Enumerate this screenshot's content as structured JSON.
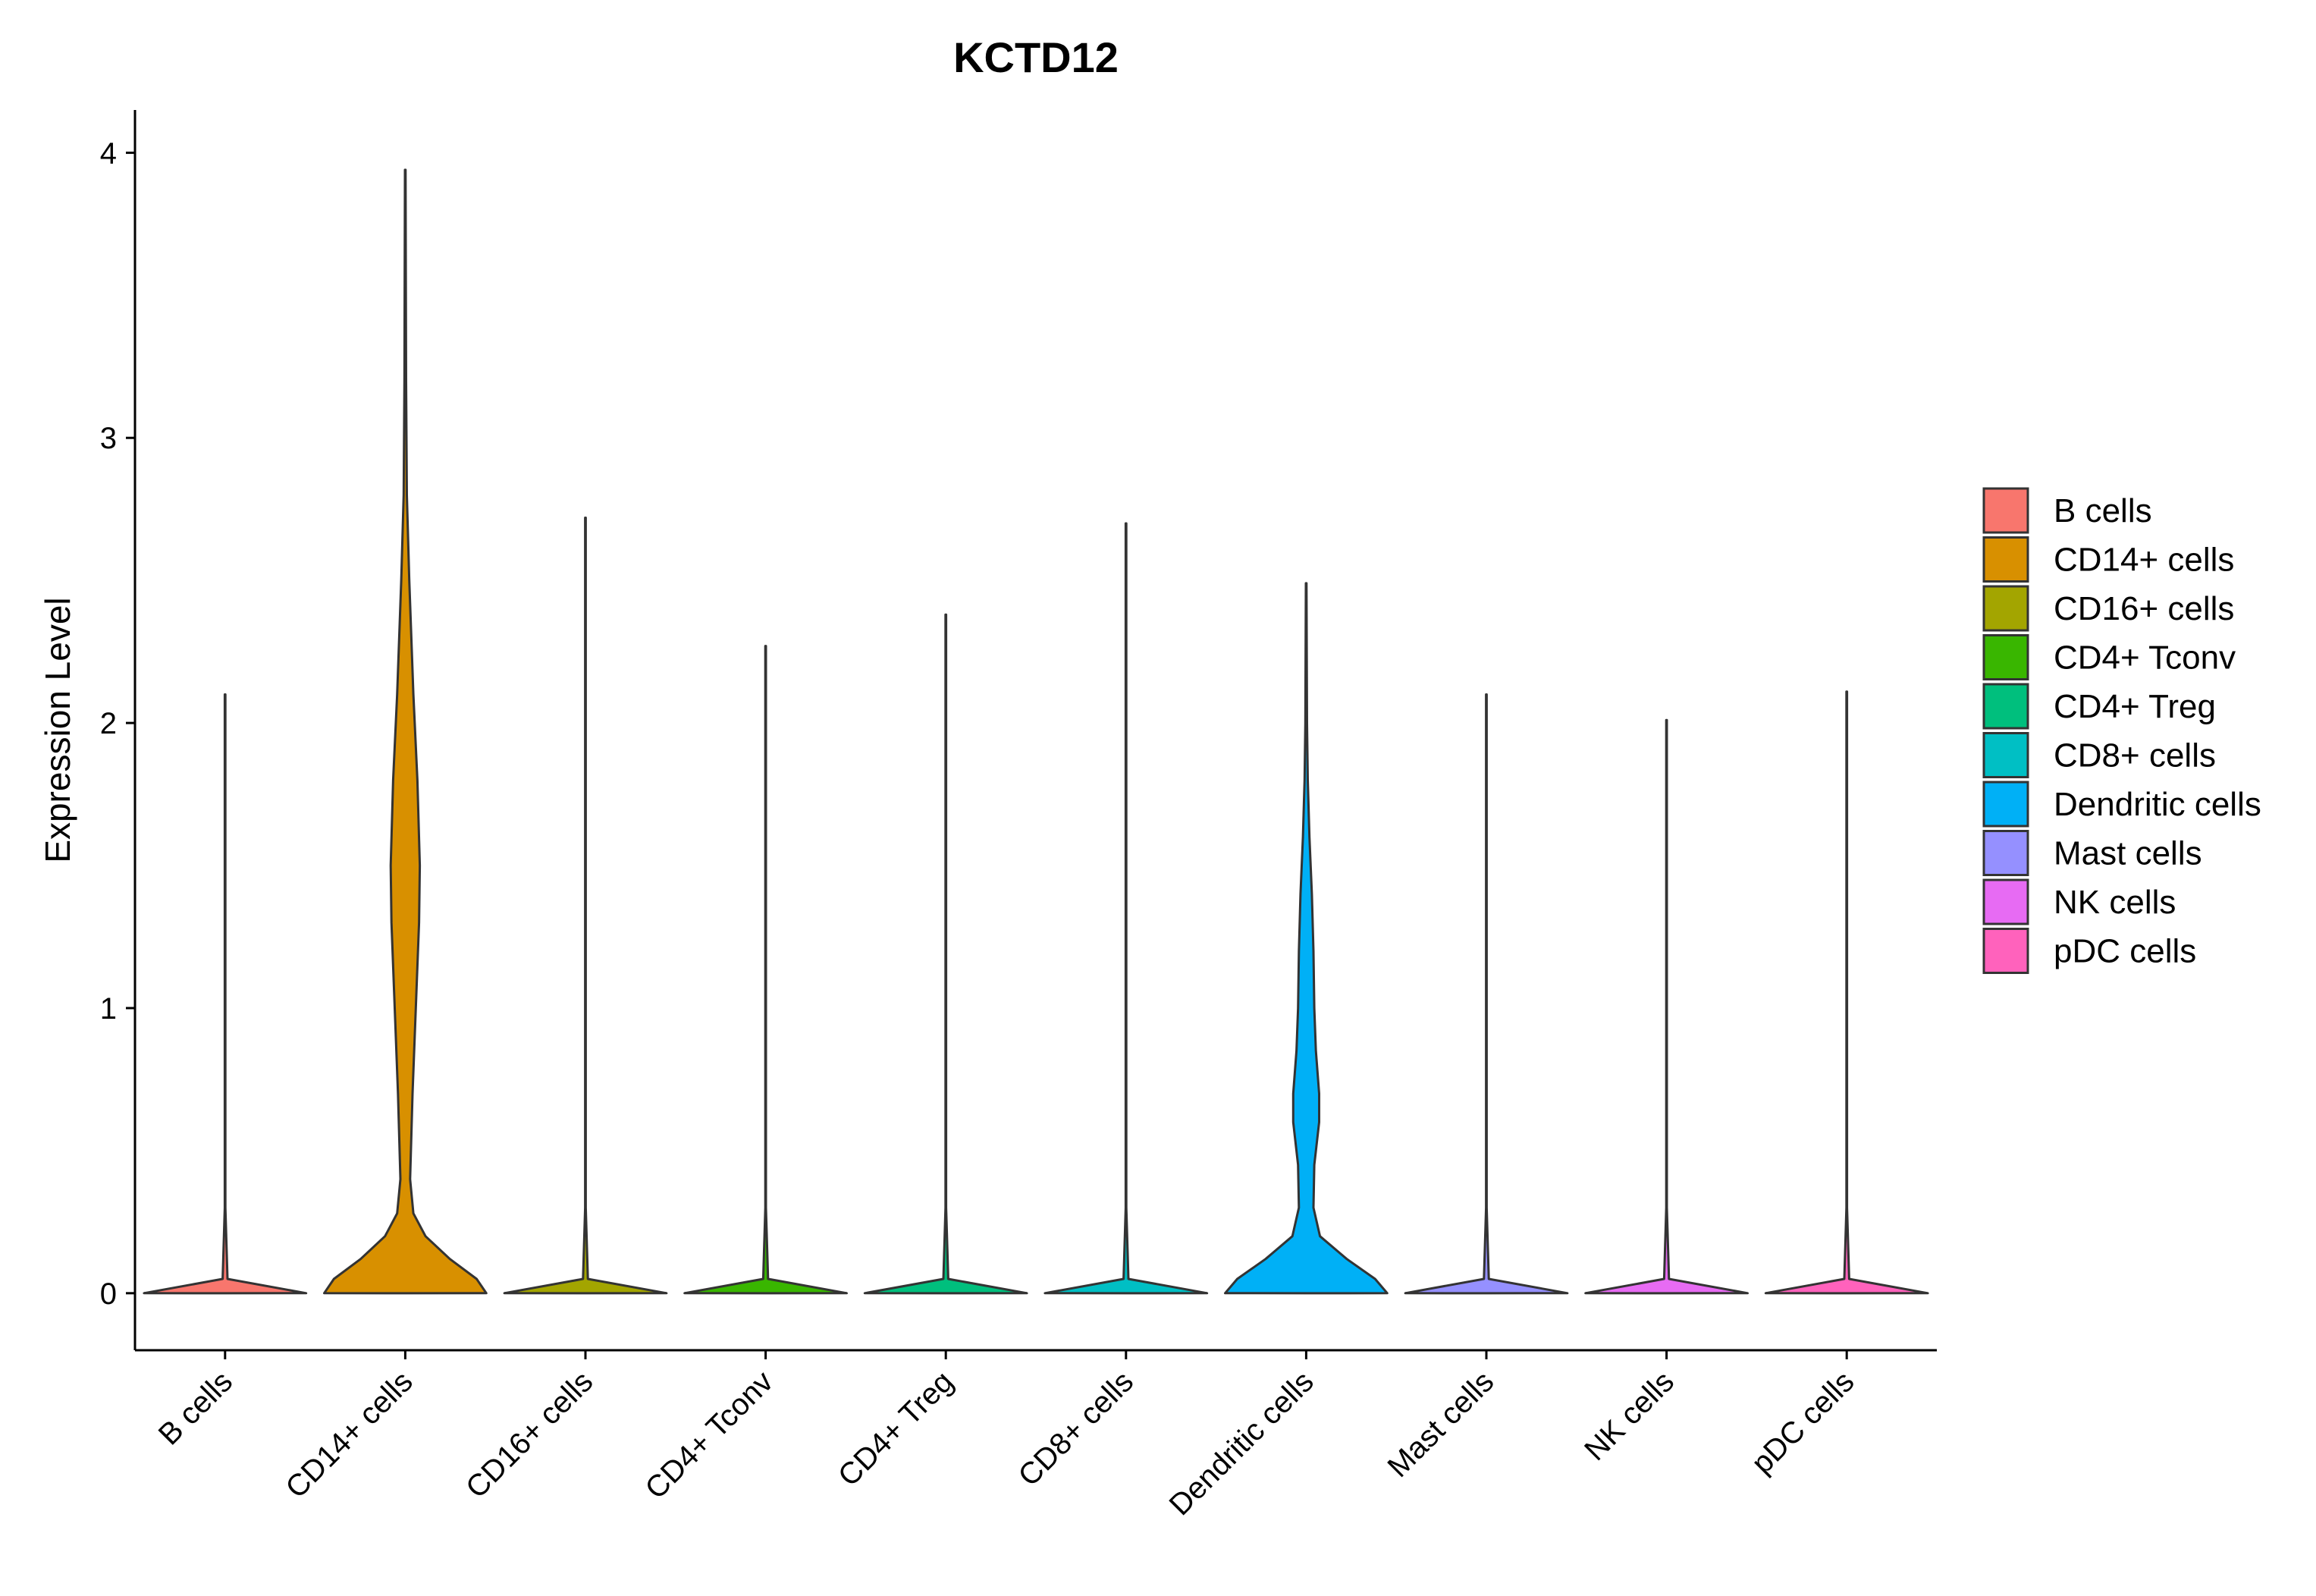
{
  "chart_data": {
    "type": "violin",
    "title": "KCTD12",
    "xlabel": "",
    "ylabel": "Expression Level",
    "ylim": [
      -0.2,
      4.15
    ],
    "yticks": [
      0,
      1,
      2,
      3,
      4
    ],
    "ytick_labels": [
      "0",
      "1",
      "2",
      "3",
      "4"
    ],
    "grid": false,
    "legend_position": "right",
    "categories": [
      "B cells",
      "CD14+ cells",
      "CD16+ cells",
      "CD4+ Tconv",
      "CD4+ Treg",
      "CD8+ cells",
      "Dendritic cells",
      "Mast cells",
      "NK cells",
      "pDC cells"
    ],
    "colors": [
      "#F8766D",
      "#D89000",
      "#A3A500",
      "#39B600",
      "#00BF7D",
      "#00BFC4",
      "#00B0F6",
      "#9590FF",
      "#E76BF3",
      "#FF62BC"
    ],
    "max_values": [
      2.1,
      3.94,
      2.72,
      2.27,
      2.38,
      2.7,
      2.49,
      2.1,
      2.01,
      2.11
    ],
    "density_profiles": [
      [
        [
          0,
          1.0
        ],
        [
          0.05,
          0.03
        ],
        [
          0.3,
          0.004
        ],
        [
          2.1,
          0.004
        ]
      ],
      [
        [
          0,
          1.0
        ],
        [
          0.05,
          0.88
        ],
        [
          0.12,
          0.55
        ],
        [
          0.2,
          0.25
        ],
        [
          0.28,
          0.1
        ],
        [
          0.4,
          0.06
        ],
        [
          0.7,
          0.09
        ],
        [
          1.0,
          0.13
        ],
        [
          1.3,
          0.17
        ],
        [
          1.5,
          0.18
        ],
        [
          1.8,
          0.15
        ],
        [
          2.1,
          0.1
        ],
        [
          2.5,
          0.05
        ],
        [
          2.8,
          0.02
        ],
        [
          3.2,
          0.01
        ],
        [
          3.94,
          0.004
        ]
      ],
      [
        [
          0,
          1.0
        ],
        [
          0.05,
          0.03
        ],
        [
          0.3,
          0.004
        ],
        [
          2.72,
          0.004
        ]
      ],
      [
        [
          0,
          1.0
        ],
        [
          0.05,
          0.03
        ],
        [
          0.3,
          0.004
        ],
        [
          2.27,
          0.004
        ]
      ],
      [
        [
          0,
          1.0
        ],
        [
          0.05,
          0.03
        ],
        [
          0.3,
          0.004
        ],
        [
          2.38,
          0.004
        ]
      ],
      [
        [
          0,
          1.0
        ],
        [
          0.05,
          0.03
        ],
        [
          0.3,
          0.004
        ],
        [
          2.7,
          0.004
        ]
      ],
      [
        [
          0,
          1.0
        ],
        [
          0.05,
          0.85
        ],
        [
          0.12,
          0.5
        ],
        [
          0.2,
          0.17
        ],
        [
          0.3,
          0.09
        ],
        [
          0.45,
          0.1
        ],
        [
          0.6,
          0.16
        ],
        [
          0.7,
          0.16
        ],
        [
          0.85,
          0.12
        ],
        [
          1.0,
          0.1
        ],
        [
          1.2,
          0.09
        ],
        [
          1.4,
          0.07
        ],
        [
          1.6,
          0.04
        ],
        [
          1.8,
          0.02
        ],
        [
          2.0,
          0.01
        ],
        [
          2.49,
          0.004
        ]
      ],
      [
        [
          0,
          1.0
        ],
        [
          0.05,
          0.03
        ],
        [
          0.3,
          0.004
        ],
        [
          2.1,
          0.004
        ]
      ],
      [
        [
          0,
          1.0
        ],
        [
          0.05,
          0.03
        ],
        [
          0.3,
          0.004
        ],
        [
          2.01,
          0.004
        ]
      ],
      [
        [
          0,
          1.0
        ],
        [
          0.05,
          0.03
        ],
        [
          0.3,
          0.004
        ],
        [
          2.11,
          0.004
        ]
      ]
    ]
  }
}
